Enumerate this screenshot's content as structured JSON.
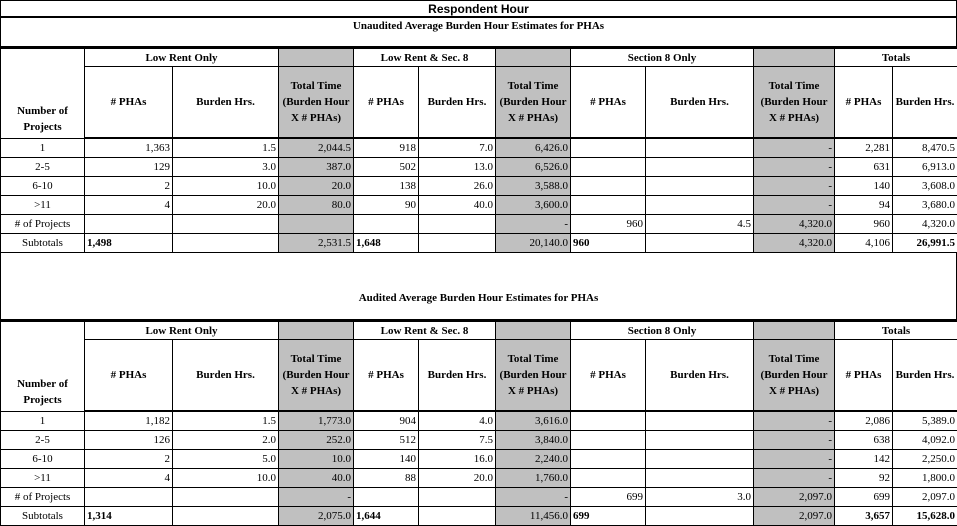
{
  "title": "Respondent Hour",
  "tables": [
    {
      "subtitle": "Unaudited Average Burden Hour Estimates for PHAs",
      "groups": [
        "Low Rent Only",
        "",
        "Low Rent & Sec. 8",
        "",
        "Section 8 Only",
        "",
        "Totals"
      ],
      "row_header": "Number of Projects",
      "columns": [
        "# PHAs",
        "Burden Hrs.",
        "Total Time (Burden Hour X # PHAs)",
        "# PHAs",
        "Burden Hrs.",
        "Total Time (Burden Hour X # PHAs)",
        "# PHAs",
        "Burden Hrs.",
        "Total Time (Burden Hour X # PHAs)",
        "# PHAs",
        "Burden Hrs."
      ],
      "rows": [
        [
          "1",
          "1,363",
          "1.5",
          "2,044.5",
          "918",
          "7.0",
          "6,426.0",
          "",
          "",
          "-",
          "2,281",
          "8,470.5"
        ],
        [
          "2-5",
          "129",
          "3.0",
          "387.0",
          "502",
          "13.0",
          "6,526.0",
          "",
          "",
          "-",
          "631",
          "6,913.0"
        ],
        [
          "6-10",
          "2",
          "10.0",
          "20.0",
          "138",
          "26.0",
          "3,588.0",
          "",
          "",
          "-",
          "140",
          "3,608.0"
        ],
        [
          ">11",
          "4",
          "20.0",
          "80.0",
          "90",
          "40.0",
          "3,600.0",
          "",
          "",
          "-",
          "94",
          "3,680.0"
        ],
        [
          "# of Projects",
          "",
          "",
          "",
          "",
          "",
          "-",
          "960",
          "4.5",
          "4,320.0",
          "960",
          "4,320.0"
        ],
        [
          "Subtotals",
          "1,498",
          "",
          "2,531.5",
          "1,648",
          "",
          "20,140.0",
          "960",
          "",
          "4,320.0",
          "4,106",
          "26,991.5"
        ]
      ],
      "subtotal_bold_columns": [
        1,
        4,
        7,
        11
      ]
    },
    {
      "subtitle": "Audited Average Burden Hour Estimates for PHAs",
      "groups": [
        "Low Rent Only",
        "",
        "Low Rent & Sec. 8",
        "",
        "Section 8 Only",
        "",
        "Totals"
      ],
      "row_header": "Number of Projects",
      "columns": [
        "# PHAs",
        "Burden Hrs.",
        "Total Time (Burden Hour X # PHAs)",
        "# PHAs",
        "Burden Hrs.",
        "Total Time (Burden Hour X # PHAs)",
        "# PHAs",
        "Burden Hrs.",
        "Total Time (Burden Hour X # PHAs)",
        "# PHAs",
        "Burden Hrs."
      ],
      "rows": [
        [
          "1",
          "1,182",
          "1.5",
          "1,773.0",
          "904",
          "4.0",
          "3,616.0",
          "",
          "",
          "-",
          "2,086",
          "5,389.0"
        ],
        [
          "2-5",
          "126",
          "2.0",
          "252.0",
          "512",
          "7.5",
          "3,840.0",
          "",
          "",
          "-",
          "638",
          "4,092.0"
        ],
        [
          "6-10",
          "2",
          "5.0",
          "10.0",
          "140",
          "16.0",
          "2,240.0",
          "",
          "",
          "-",
          "142",
          "2,250.0"
        ],
        [
          ">11",
          "4",
          "10.0",
          "40.0",
          "88",
          "20.0",
          "1,760.0",
          "",
          "",
          "-",
          "92",
          "1,800.0"
        ],
        [
          "# of Projects",
          "",
          "",
          "-",
          "",
          "",
          "-",
          "699",
          "3.0",
          "2,097.0",
          "699",
          "2,097.0"
        ],
        [
          "Subtotals",
          "1,314",
          "",
          "2,075.0",
          "1,644",
          "",
          "11,456.0",
          "699",
          "",
          "2,097.0",
          "3,657",
          "15,628.0"
        ]
      ],
      "subtotal_bold_columns": [
        1,
        4,
        7,
        10,
        11
      ]
    }
  ],
  "colors": {
    "shaded_column": "#c0c0c0",
    "border": "#000000"
  }
}
